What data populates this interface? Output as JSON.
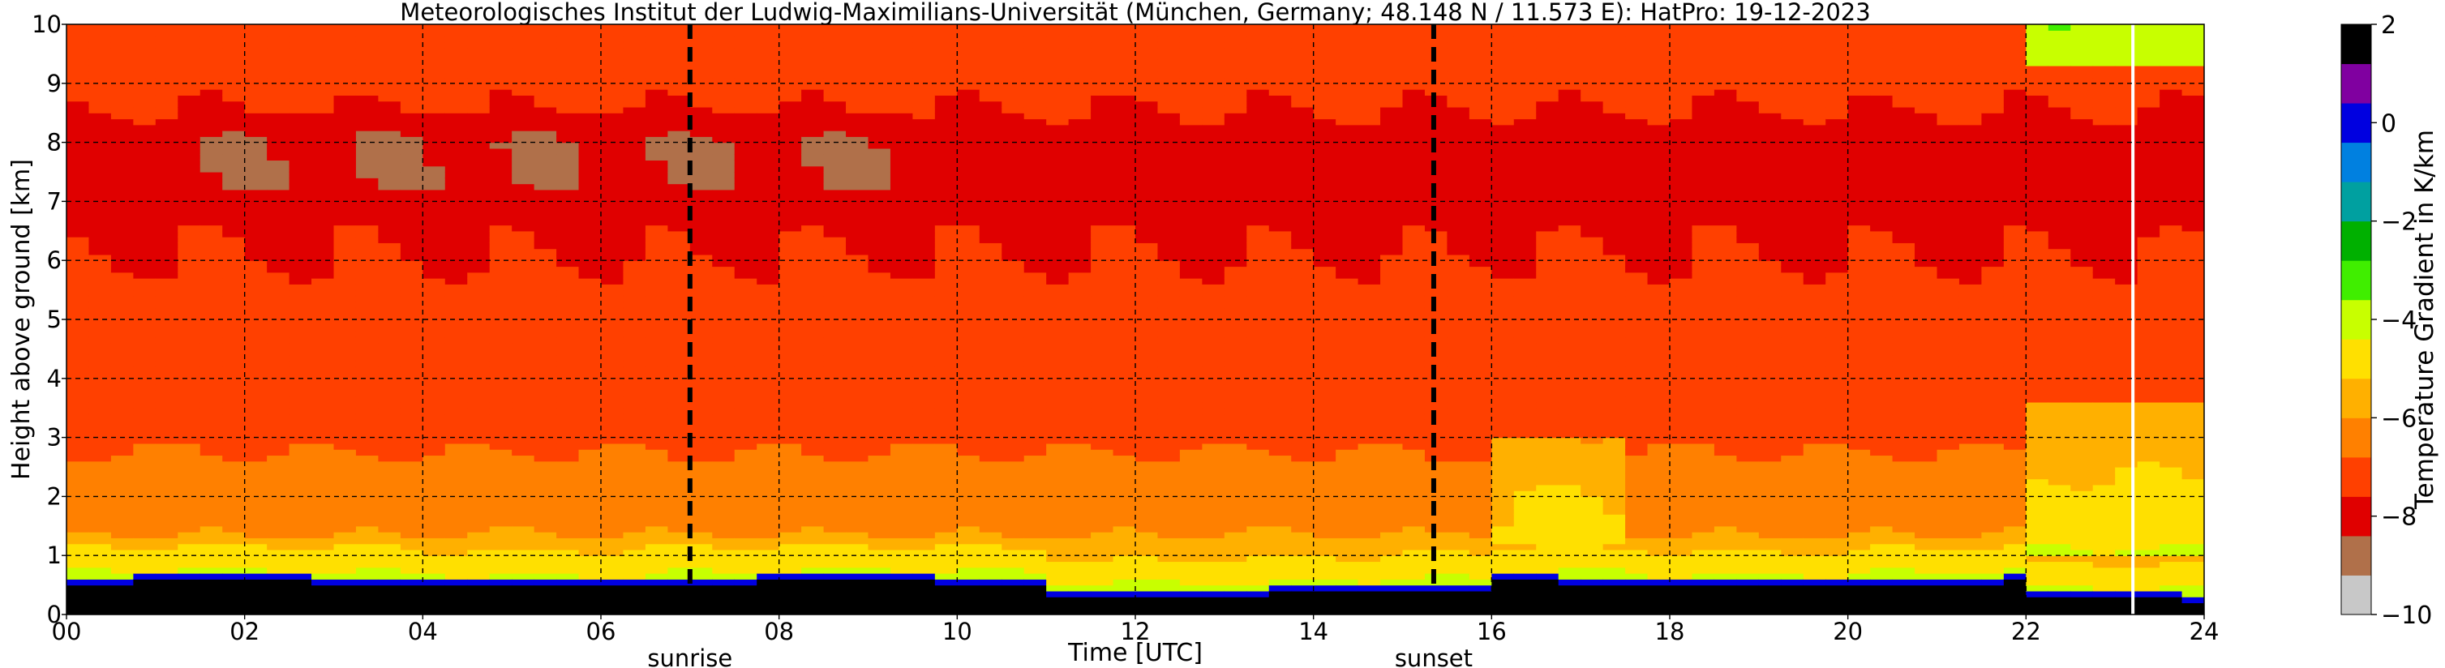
{
  "chart_data": {
    "type": "heatmap",
    "title": "Meteorologisches Institut der Ludwig-Maximilians-Universität (München, Germany; 48.148 N / 11.573 E):    HatPro: 19-12-2023",
    "xlabel": "Time [UTC]",
    "ylabel": "Height above ground [km]",
    "xlim": [
      0,
      24
    ],
    "ylim": [
      0,
      10
    ],
    "x_ticks": [
      "00",
      "02",
      "04",
      "06",
      "08",
      "10",
      "12",
      "14",
      "16",
      "18",
      "20",
      "22",
      "24"
    ],
    "y_ticks": [
      "0",
      "1",
      "2",
      "3",
      "4",
      "5",
      "6",
      "7",
      "8",
      "9",
      "10"
    ],
    "grid": true,
    "colorbar": {
      "label": "Temperature Gradient in K/km",
      "range": [
        -10,
        2
      ],
      "ticks": [
        "2",
        "0",
        "−2",
        "−4",
        "−6",
        "−8",
        "−10"
      ],
      "colors": [
        "#c8c8c8",
        "#b0704a",
        "#e00000",
        "#ff4000",
        "#ff8000",
        "#ffb000",
        "#ffe000",
        "#c8ff00",
        "#40ee00",
        "#00b000",
        "#00a0a0",
        "#0080e0",
        "#0000e0",
        "#8000a0",
        "#000000"
      ]
    },
    "markers": [
      {
        "label": "sunrise",
        "x": 7.0
      },
      {
        "label": "sunset",
        "x": 15.35
      }
    ],
    "data_gap_x": 23.2,
    "profile_levels_km": [
      0.1,
      0.3,
      0.5,
      0.65,
      0.8,
      1.0,
      1.5,
      2.0,
      2.5,
      3.0,
      3.5,
      4.0,
      4.5,
      5.0,
      5.5,
      6.0,
      6.5,
      7.0,
      7.5,
      8.0,
      8.5,
      9.0,
      9.5,
      10.0
    ],
    "profile_gradient_K_per_km": [
      1.5,
      1.5,
      0.5,
      -4.0,
      -5.0,
      -5.5,
      -6.2,
      -6.3,
      -6.6,
      -7.0,
      -7.0,
      -7.1,
      -7.2,
      -7.3,
      -7.4,
      -7.6,
      -7.7,
      -7.9,
      -8.0,
      -8.0,
      -7.6,
      -7.4,
      -7.2,
      -7.0
    ]
  }
}
